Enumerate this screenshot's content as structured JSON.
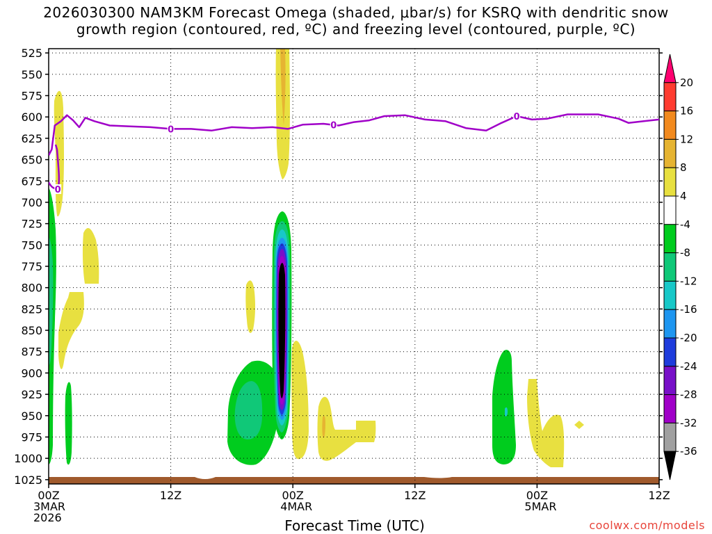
{
  "title": {
    "line1": "2026030300 NAM3KM Forecast Omega (shaded, μbar/s) for KSRQ with dendritic snow",
    "line2": "growth region (contoured, red, ºC) and freezing level (contoured, purple, ºC)"
  },
  "credit": "coolwx.com/models",
  "chart_data": {
    "type": "heatmap",
    "title": "2026030300 NAM3KM Forecast Omega (shaded, μbar/s) for KSRQ with dendritic snow growth region (contoured, red, ºC) and freezing level (contoured, purple, ºC)",
    "xlabel": "Forecast Time (UTC)",
    "ylabel": "",
    "x_ticks": [
      {
        "h": 0,
        "lines": [
          "00Z",
          "3MAR",
          "2026"
        ]
      },
      {
        "h": 12,
        "lines": [
          "12Z"
        ]
      },
      {
        "h": 24,
        "lines": [
          "00Z",
          "4MAR"
        ]
      },
      {
        "h": 36,
        "lines": [
          "12Z"
        ]
      },
      {
        "h": 48,
        "lines": [
          "00Z",
          "5MAR"
        ]
      },
      {
        "h": 60,
        "lines": [
          "12Z"
        ]
      }
    ],
    "xlim_hours": [
      0,
      60
    ],
    "y_ticks": [
      525,
      550,
      575,
      600,
      625,
      650,
      675,
      700,
      725,
      750,
      775,
      800,
      825,
      850,
      875,
      900,
      925,
      950,
      975,
      1000,
      1025
    ],
    "ylim_mb": [
      520,
      1030
    ],
    "grid": true,
    "colorbar": {
      "labels": [
        "20",
        "16",
        "12",
        "8",
        "4",
        "-4",
        "-8",
        "-12",
        "-16",
        "-20",
        "-24",
        "-28",
        "-32",
        "-36"
      ],
      "colors_top_to_bottom": [
        "#ff0070",
        "#ff3c30",
        "#f28a1e",
        "#e6b432",
        "#e8e040",
        "#ffffff",
        "#00cc1e",
        "#10c878",
        "#18c8c8",
        "#1e96f0",
        "#1e3cdc",
        "#7810c8",
        "#a000c8",
        "#a0a0a0",
        "#000000"
      ]
    },
    "freezing_level_label": "0",
    "freezing_level_mb": [
      [
        0.0,
        645
      ],
      [
        0.3,
        638
      ],
      [
        0.6,
        610
      ],
      [
        1.2,
        605
      ],
      [
        1.8,
        598
      ],
      [
        2.4,
        604
      ],
      [
        3.0,
        612
      ],
      [
        3.6,
        601
      ],
      [
        4.5,
        605
      ],
      [
        6,
        610
      ],
      [
        8,
        611
      ],
      [
        10,
        612
      ],
      [
        12,
        614
      ],
      [
        14,
        614
      ],
      [
        16,
        616
      ],
      [
        18,
        612
      ],
      [
        20,
        613
      ],
      [
        22,
        612
      ],
      [
        23.5,
        614
      ],
      [
        25,
        609
      ],
      [
        27,
        608
      ],
      [
        28.5,
        610
      ],
      [
        30,
        606
      ],
      [
        31.5,
        604
      ],
      [
        33,
        599
      ],
      [
        35,
        598
      ],
      [
        37,
        603
      ],
      [
        39,
        605
      ],
      [
        41,
        613
      ],
      [
        43,
        616
      ],
      [
        44.5,
        607
      ],
      [
        46,
        599
      ],
      [
        47.5,
        603
      ],
      [
        49,
        602
      ],
      [
        51,
        597
      ],
      [
        54,
        597
      ],
      [
        56,
        602
      ],
      [
        57,
        607
      ],
      [
        58.5,
        605
      ],
      [
        60,
        603
      ]
    ],
    "freezing_level_label_positions_h": [
      0.9,
      12,
      28,
      46
    ],
    "omega_regions": [
      {
        "value": "4 to 8",
        "t_center_h": 23.5,
        "p_top_mb": 520,
        "p_bottom_mb": 640
      },
      {
        "value": "8 to 12",
        "t_center_h": 23.5,
        "p_top_mb": 520,
        "p_bottom_mb": 580
      },
      {
        "value": "4 to 8",
        "t_center_h": 1.0,
        "p_top_mb": 555,
        "p_bottom_mb": 680
      },
      {
        "value": "4 to 8",
        "t_center_h": 4.2,
        "p_top_mb": 690,
        "p_bottom_mb": 755
      },
      {
        "value": "4 to 8",
        "t_center_h": 2.3,
        "p_top_mb": 775,
        "p_bottom_mb": 860
      },
      {
        "value": "4 to 8",
        "t_center_h": 20.0,
        "p_top_mb": 755,
        "p_bottom_mb": 810
      },
      {
        "value": "-36 to -8",
        "t_center_h": 23.3,
        "p_top_mb": 675,
        "p_bottom_mb": 935
      },
      {
        "value": "-12 to -8",
        "t_center_h": 19.5,
        "p_top_mb": 865,
        "p_bottom_mb": 985
      },
      {
        "value": "4 to 8",
        "t_center_h": 24.8,
        "p_top_mb": 835,
        "p_bottom_mb": 985
      },
      {
        "value": "4 to 8",
        "t_center_h": 28.5,
        "p_top_mb": 925,
        "p_bottom_mb": 985
      },
      {
        "value": "-8 to -4",
        "t_center_h": 0.5,
        "p_top_mb": 670,
        "p_bottom_mb": 990
      },
      {
        "value": "-8 to -4",
        "t_center_h": 2.1,
        "p_top_mb": 875,
        "p_bottom_mb": 990
      },
      {
        "value": "-8 to -4",
        "t_center_h": 45.3,
        "p_top_mb": 835,
        "p_bottom_mb": 990
      },
      {
        "value": "4 to 8",
        "t_center_h": 50.0,
        "p_top_mb": 875,
        "p_bottom_mb": 990
      },
      {
        "value": "4 to 8",
        "t_center_h": 52.5,
        "p_top_mb": 940,
        "p_bottom_mb": 950
      }
    ],
    "terrain_surface_mb": 1022
  }
}
